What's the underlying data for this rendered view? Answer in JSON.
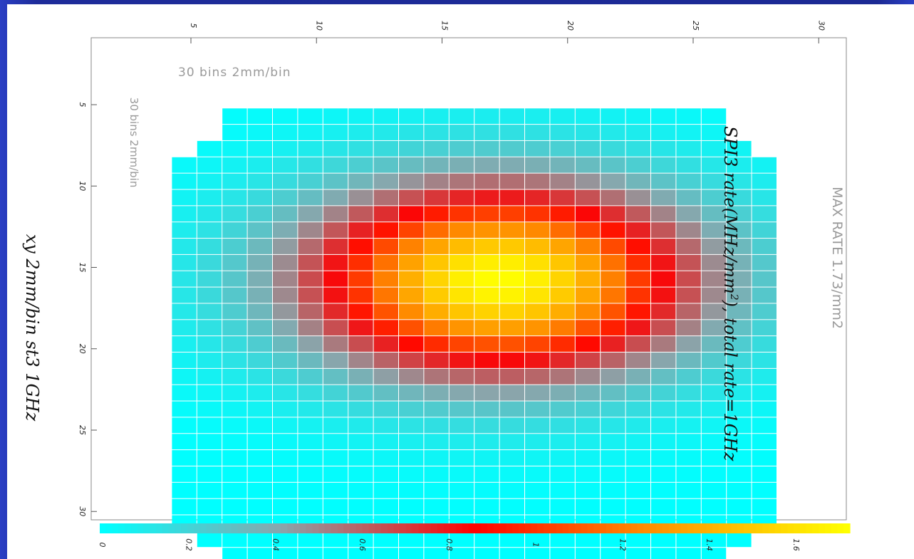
{
  "chart_data": {
    "type": "heatmap",
    "title_parts": [
      "SPI3 rate(MHz/mm",
      "2",
      "), total rate=1GHz"
    ],
    "ylabel": "xy 2mm/bin st3 1GHz",
    "annotations": {
      "bins_top": "30 bins 2mm/bin",
      "bins_side": "30 bins 2mm/bin",
      "max_rate": "MAX RATE 1.73/mm2"
    },
    "x_axis": {
      "range": [
        0,
        30
      ],
      "ticks": [
        "5",
        "10",
        "15",
        "20",
        "25",
        "30"
      ]
    },
    "y_axis": {
      "range": [
        0,
        30
      ],
      "ticks": [
        "5",
        "10",
        "15",
        "20",
        "25",
        "30"
      ]
    },
    "colorbar": {
      "range": [
        0,
        1.73
      ],
      "ticks": [
        "0",
        "0.2",
        "0.4",
        "0.6",
        "0.8",
        "1",
        "1.2",
        "1.4",
        "1.6"
      ]
    },
    "colors": [
      "#00ffff",
      "#8aa5ab",
      "#ff0000",
      "#ff8800",
      "#ffff00"
    ],
    "max_value": 1.73,
    "total_rate": "1GHz",
    "grid": true
  }
}
